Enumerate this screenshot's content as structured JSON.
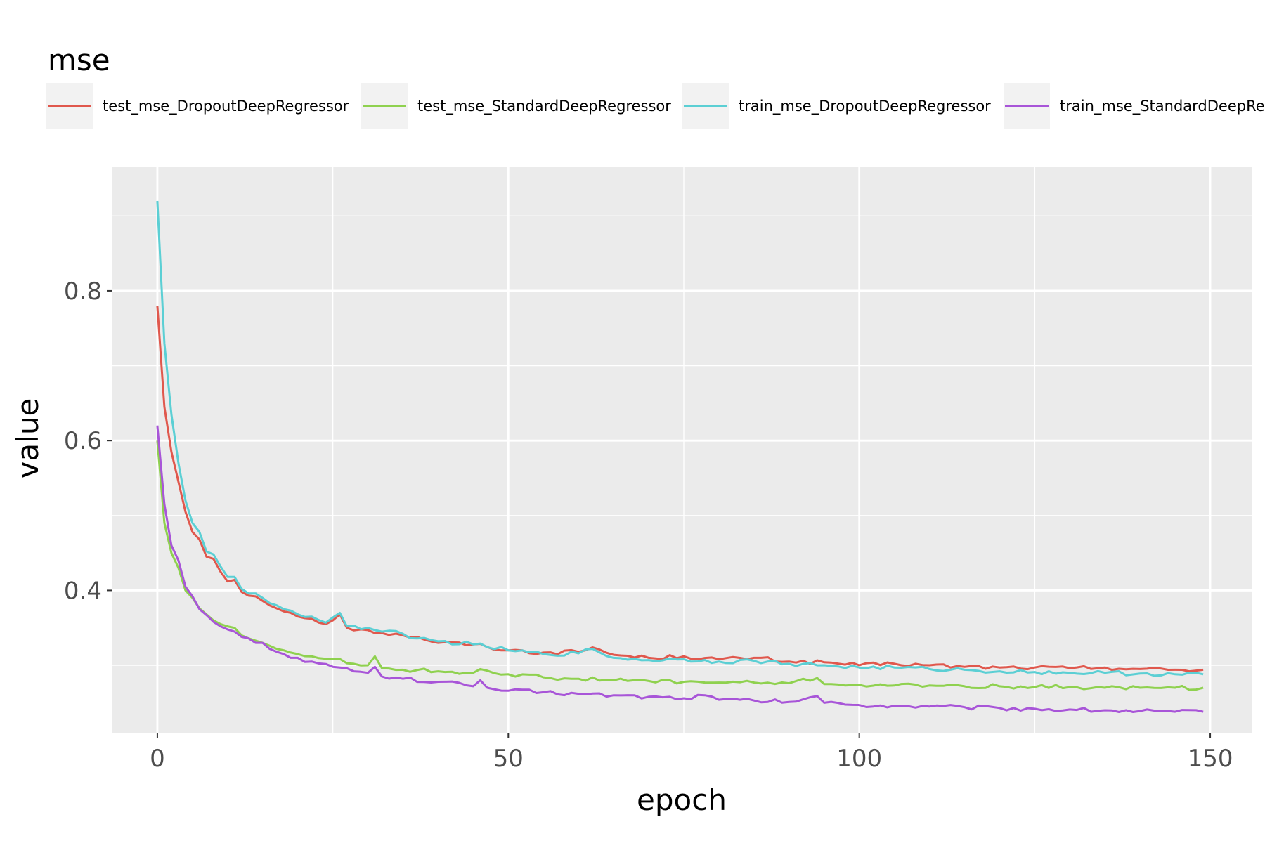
{
  "chart_data": {
    "type": "line",
    "xlabel": "epoch",
    "ylabel": "value",
    "legend_title": "mse",
    "legend_position": "top",
    "panel_background": "#ebebeb",
    "grid": true,
    "xlim": [
      -6.5,
      156
    ],
    "ylim": [
      0.21,
      0.965
    ],
    "x_ticks": [
      0,
      50,
      100,
      150
    ],
    "x_tick_labels": [
      "0",
      "50",
      "100",
      "150"
    ],
    "y_ticks": [
      0.4,
      0.6,
      0.8
    ],
    "y_tick_labels": [
      "0.4",
      "0.6",
      "0.8"
    ],
    "series": [
      {
        "name": "test_mse_DropoutDeepRegressor",
        "color": "#e0584d",
        "keypoints": [
          [
            0,
            0.78
          ],
          [
            1,
            0.645
          ],
          [
            2,
            0.585
          ],
          [
            3,
            0.545
          ],
          [
            4,
            0.505
          ],
          [
            5,
            0.478
          ],
          [
            6,
            0.468
          ],
          [
            7,
            0.445
          ],
          [
            8,
            0.442
          ],
          [
            9,
            0.425
          ],
          [
            10,
            0.412
          ],
          [
            11,
            0.414
          ],
          [
            12,
            0.398
          ],
          [
            13,
            0.393
          ],
          [
            14,
            0.392
          ],
          [
            15,
            0.386
          ],
          [
            16,
            0.38
          ],
          [
            17,
            0.376
          ],
          [
            18,
            0.372
          ],
          [
            19,
            0.37
          ],
          [
            20,
            0.365
          ],
          [
            22,
            0.362
          ],
          [
            24,
            0.355
          ],
          [
            26,
            0.368
          ],
          [
            27,
            0.35
          ],
          [
            30,
            0.347
          ],
          [
            32,
            0.343
          ],
          [
            35,
            0.34
          ],
          [
            37,
            0.338
          ],
          [
            40,
            0.33
          ],
          [
            45,
            0.328
          ],
          [
            50,
            0.32
          ],
          [
            55,
            0.317
          ],
          [
            60,
            0.318
          ],
          [
            62,
            0.324
          ],
          [
            65,
            0.314
          ],
          [
            70,
            0.31
          ],
          [
            75,
            0.312
          ],
          [
            80,
            0.308
          ],
          [
            85,
            0.31
          ],
          [
            90,
            0.305
          ],
          [
            95,
            0.304
          ],
          [
            100,
            0.3
          ],
          [
            105,
            0.302
          ],
          [
            110,
            0.3
          ],
          [
            115,
            0.298
          ],
          [
            120,
            0.297
          ],
          [
            125,
            0.297
          ],
          [
            130,
            0.296
          ],
          [
            135,
            0.297
          ],
          [
            140,
            0.295
          ],
          [
            145,
            0.294
          ],
          [
            149,
            0.294
          ]
        ],
        "noise": 0.0028
      },
      {
        "name": "test_mse_StandardDeepRegressor",
        "color": "#8fd14f",
        "keypoints": [
          [
            0,
            0.6
          ],
          [
            1,
            0.49
          ],
          [
            2,
            0.45
          ],
          [
            3,
            0.43
          ],
          [
            4,
            0.4
          ],
          [
            5,
            0.39
          ],
          [
            6,
            0.376
          ],
          [
            7,
            0.368
          ],
          [
            8,
            0.36
          ],
          [
            9,
            0.355
          ],
          [
            10,
            0.352
          ],
          [
            11,
            0.35
          ],
          [
            12,
            0.34
          ],
          [
            13,
            0.336
          ],
          [
            14,
            0.333
          ],
          [
            15,
            0.33
          ],
          [
            16,
            0.326
          ],
          [
            17,
            0.322
          ],
          [
            18,
            0.32
          ],
          [
            19,
            0.317
          ],
          [
            20,
            0.315
          ],
          [
            22,
            0.312
          ],
          [
            25,
            0.308
          ],
          [
            28,
            0.302
          ],
          [
            30,
            0.3
          ],
          [
            31,
            0.312
          ],
          [
            32,
            0.296
          ],
          [
            35,
            0.294
          ],
          [
            40,
            0.292
          ],
          [
            45,
            0.29
          ],
          [
            46,
            0.295
          ],
          [
            50,
            0.288
          ],
          [
            55,
            0.284
          ],
          [
            60,
            0.282
          ],
          [
            65,
            0.28
          ],
          [
            70,
            0.279
          ],
          [
            75,
            0.278
          ],
          [
            80,
            0.277
          ],
          [
            85,
            0.277
          ],
          [
            90,
            0.276
          ],
          [
            94,
            0.283
          ],
          [
            95,
            0.275
          ],
          [
            100,
            0.274
          ],
          [
            105,
            0.273
          ],
          [
            110,
            0.273
          ],
          [
            115,
            0.272
          ],
          [
            120,
            0.272
          ],
          [
            125,
            0.271
          ],
          [
            130,
            0.271
          ],
          [
            135,
            0.27
          ],
          [
            140,
            0.27
          ],
          [
            145,
            0.27
          ],
          [
            149,
            0.27
          ]
        ],
        "noise": 0.0028
      },
      {
        "name": "train_mse_DropoutDeepRegressor",
        "color": "#5bcfd4",
        "keypoints": [
          [
            0,
            0.92
          ],
          [
            1,
            0.73
          ],
          [
            2,
            0.635
          ],
          [
            3,
            0.57
          ],
          [
            4,
            0.52
          ],
          [
            5,
            0.49
          ],
          [
            6,
            0.478
          ],
          [
            7,
            0.452
          ],
          [
            8,
            0.448
          ],
          [
            9,
            0.432
          ],
          [
            10,
            0.418
          ],
          [
            11,
            0.418
          ],
          [
            12,
            0.402
          ],
          [
            13,
            0.396
          ],
          [
            14,
            0.396
          ],
          [
            15,
            0.39
          ],
          [
            16,
            0.383
          ],
          [
            17,
            0.38
          ],
          [
            18,
            0.375
          ],
          [
            19,
            0.373
          ],
          [
            20,
            0.368
          ],
          [
            22,
            0.365
          ],
          [
            24,
            0.357
          ],
          [
            26,
            0.37
          ],
          [
            27,
            0.352
          ],
          [
            30,
            0.35
          ],
          [
            32,
            0.345
          ],
          [
            35,
            0.342
          ],
          [
            37,
            0.336
          ],
          [
            40,
            0.332
          ],
          [
            45,
            0.328
          ],
          [
            50,
            0.32
          ],
          [
            55,
            0.315
          ],
          [
            60,
            0.316
          ],
          [
            62,
            0.322
          ],
          [
            65,
            0.31
          ],
          [
            70,
            0.307
          ],
          [
            75,
            0.308
          ],
          [
            80,
            0.305
          ],
          [
            85,
            0.306
          ],
          [
            90,
            0.302
          ],
          [
            95,
            0.3
          ],
          [
            100,
            0.297
          ],
          [
            105,
            0.297
          ],
          [
            110,
            0.295
          ],
          [
            115,
            0.294
          ],
          [
            120,
            0.292
          ],
          [
            125,
            0.291
          ],
          [
            130,
            0.29
          ],
          [
            135,
            0.29
          ],
          [
            140,
            0.289
          ],
          [
            145,
            0.288
          ],
          [
            149,
            0.288
          ]
        ],
        "noise": 0.0028
      },
      {
        "name": "train_mse_StandardDeepRegressor",
        "color": "#a855d8",
        "keypoints": [
          [
            0,
            0.62
          ],
          [
            1,
            0.515
          ],
          [
            2,
            0.46
          ],
          [
            3,
            0.44
          ],
          [
            4,
            0.405
          ],
          [
            5,
            0.392
          ],
          [
            6,
            0.375
          ],
          [
            7,
            0.367
          ],
          [
            8,
            0.358
          ],
          [
            9,
            0.352
          ],
          [
            10,
            0.348
          ],
          [
            11,
            0.345
          ],
          [
            12,
            0.338
          ],
          [
            13,
            0.336
          ],
          [
            14,
            0.33
          ],
          [
            15,
            0.33
          ],
          [
            16,
            0.322
          ],
          [
            17,
            0.318
          ],
          [
            18,
            0.315
          ],
          [
            19,
            0.31
          ],
          [
            20,
            0.31
          ],
          [
            22,
            0.305
          ],
          [
            25,
            0.298
          ],
          [
            28,
            0.292
          ],
          [
            30,
            0.29
          ],
          [
            31,
            0.298
          ],
          [
            32,
            0.285
          ],
          [
            35,
            0.282
          ],
          [
            40,
            0.278
          ],
          [
            45,
            0.272
          ],
          [
            46,
            0.28
          ],
          [
            47,
            0.27
          ],
          [
            50,
            0.266
          ],
          [
            55,
            0.264
          ],
          [
            60,
            0.262
          ],
          [
            65,
            0.26
          ],
          [
            70,
            0.258
          ],
          [
            75,
            0.256
          ],
          [
            78,
            0.26
          ],
          [
            80,
            0.254
          ],
          [
            85,
            0.253
          ],
          [
            90,
            0.251
          ],
          [
            94,
            0.259
          ],
          [
            95,
            0.25
          ],
          [
            100,
            0.247
          ],
          [
            105,
            0.246
          ],
          [
            110,
            0.245
          ],
          [
            115,
            0.244
          ],
          [
            120,
            0.243
          ],
          [
            125,
            0.242
          ],
          [
            130,
            0.241
          ],
          [
            135,
            0.24
          ],
          [
            140,
            0.239
          ],
          [
            145,
            0.238
          ],
          [
            149,
            0.238
          ]
        ],
        "noise": 0.003
      }
    ]
  }
}
